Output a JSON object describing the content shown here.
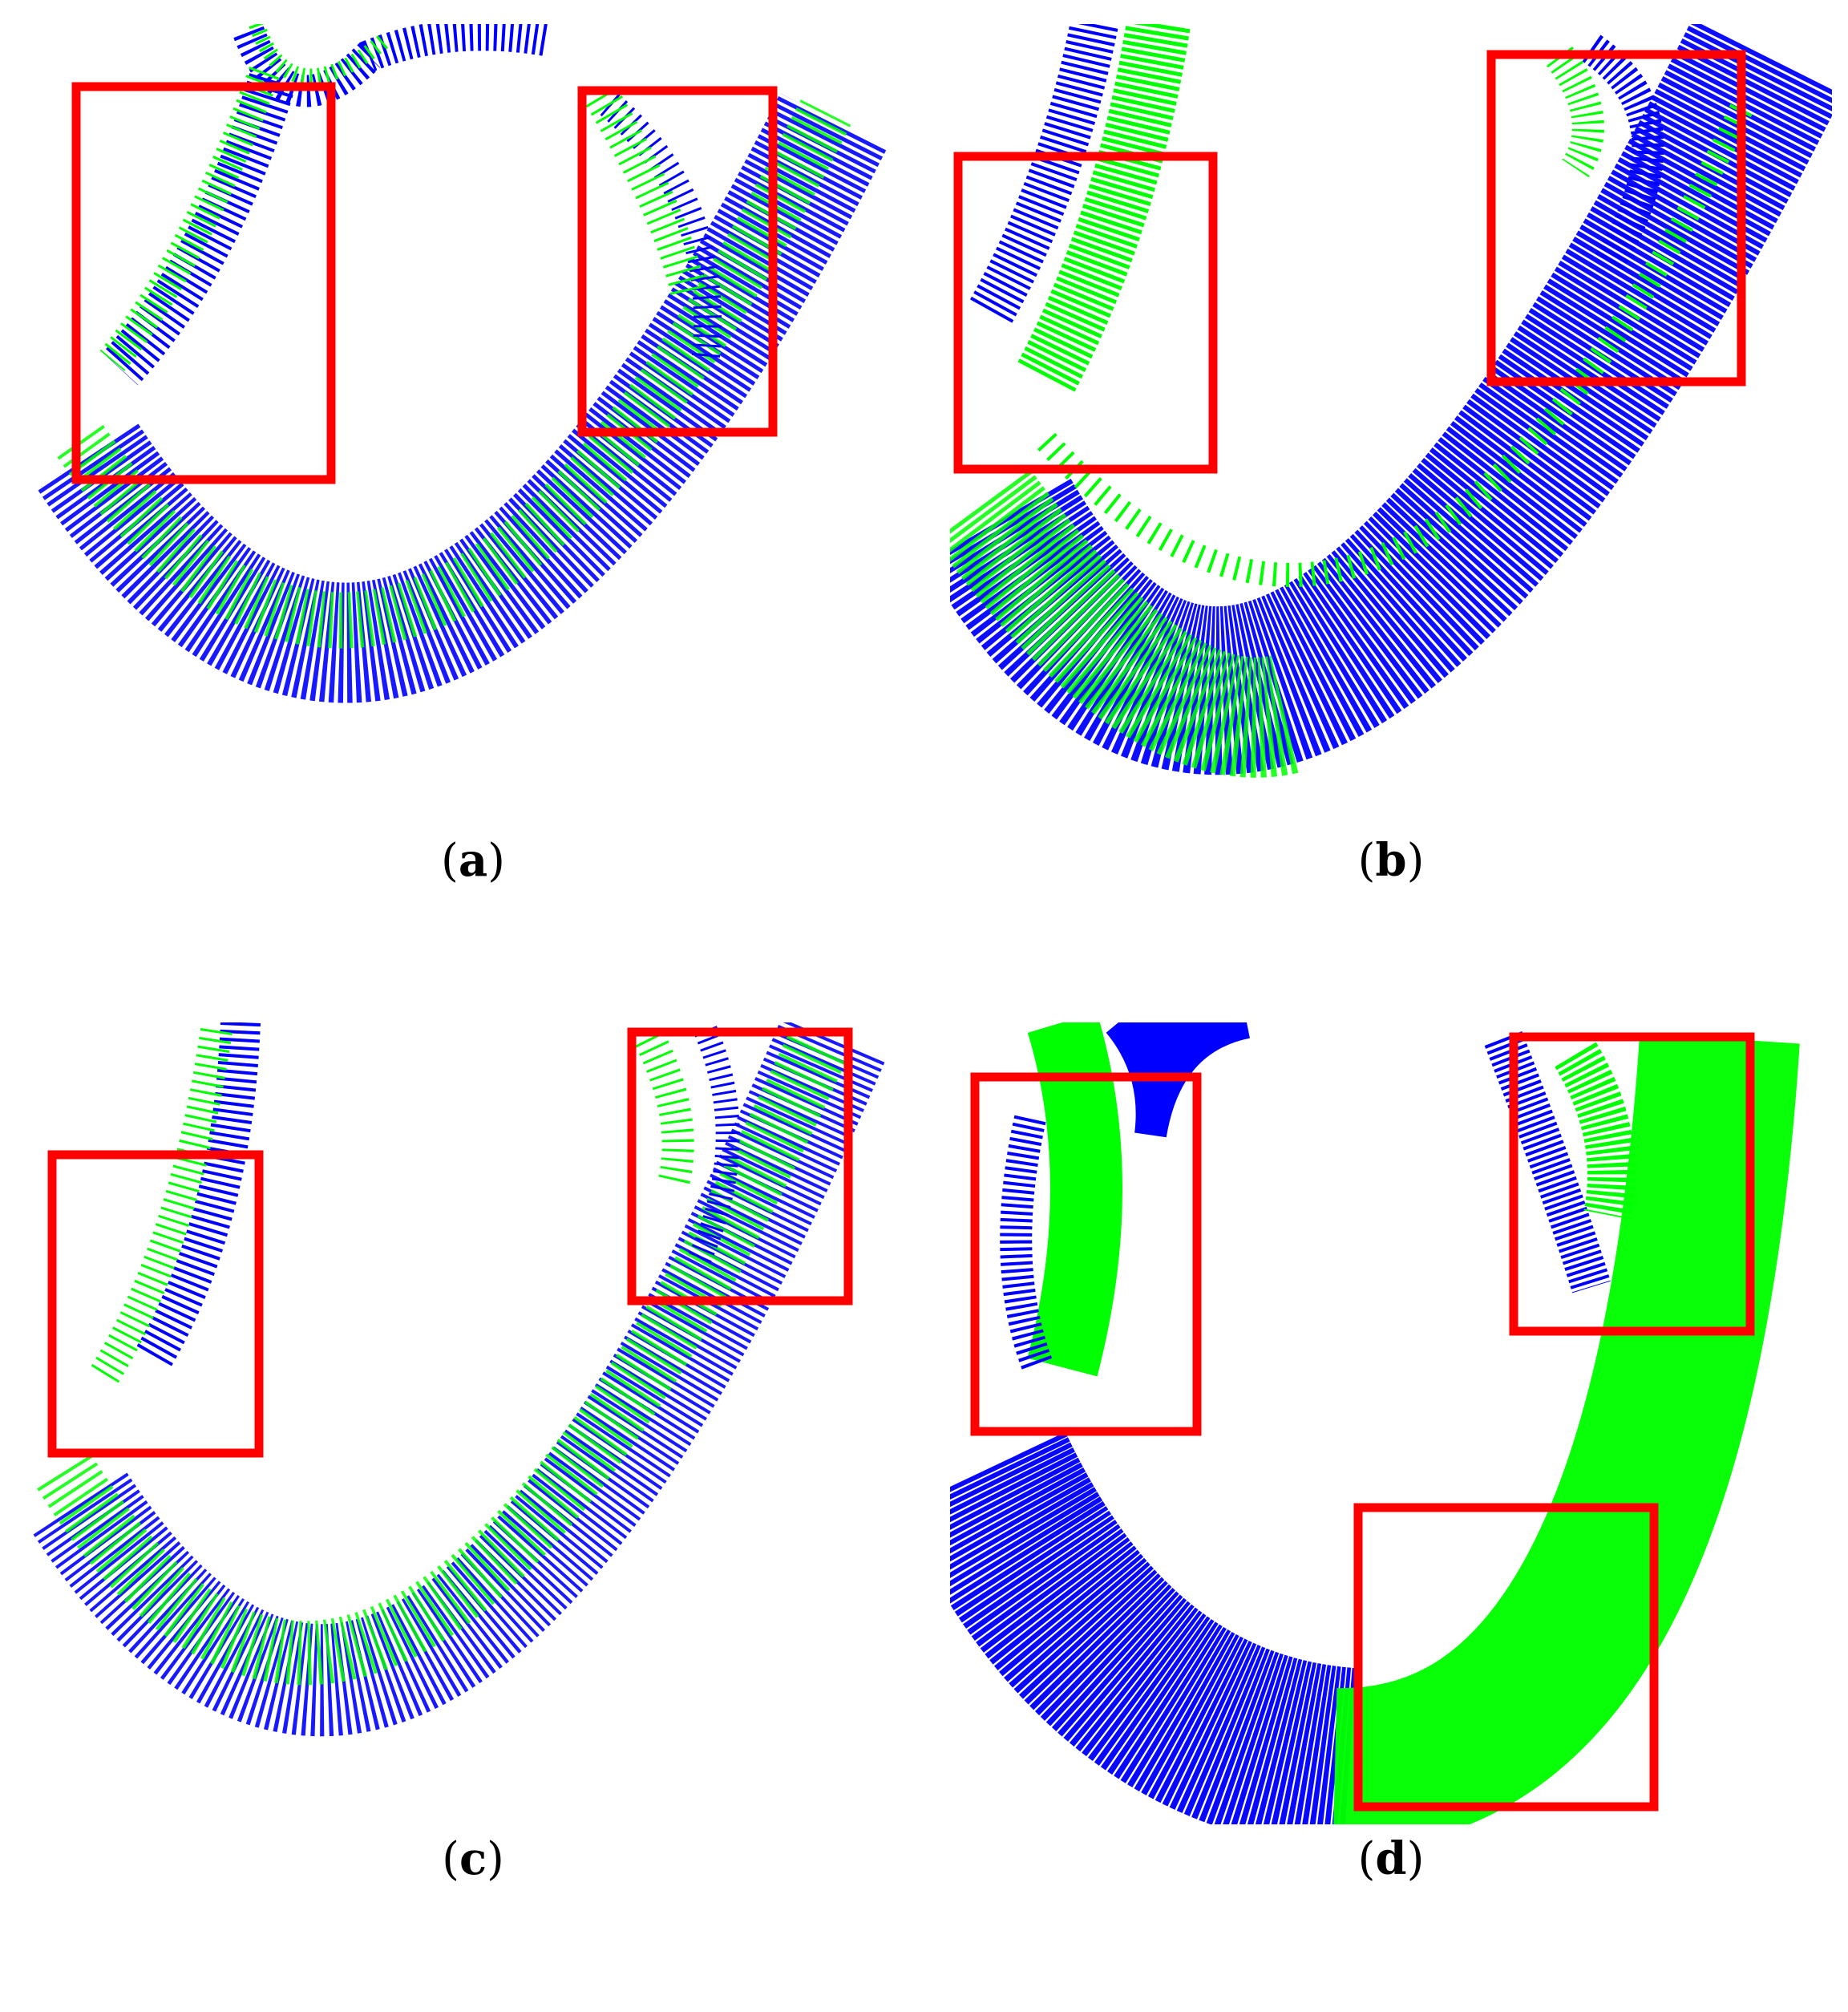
{
  "figure": {
    "colors": {
      "source_cloud": "#0000ff",
      "target_cloud": "#00ff00",
      "highlight_box": "#ff0000"
    },
    "panels": [
      {
        "id": "a",
        "caption_open": "(",
        "caption_letter": "a",
        "caption_close": ")"
      },
      {
        "id": "b",
        "caption_open": "(",
        "caption_letter": "b",
        "caption_close": ")"
      },
      {
        "id": "c",
        "caption_open": "(",
        "caption_letter": "c",
        "caption_close": ")"
      },
      {
        "id": "d",
        "caption_open": "(",
        "caption_letter": "d",
        "caption_close": ")"
      }
    ]
  }
}
